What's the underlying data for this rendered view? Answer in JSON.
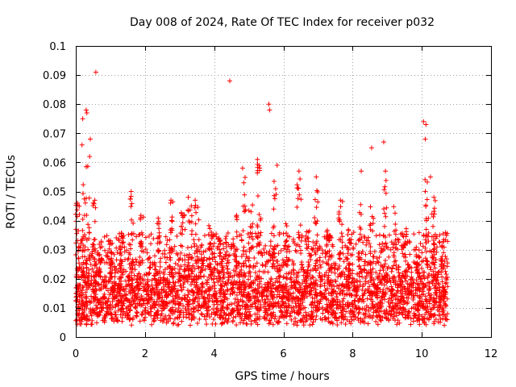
{
  "chart_data": {
    "type": "scatter",
    "title": "Day 008 of 2024, Rate Of TEC Index for receiver p032",
    "xlabel": "GPS time / hours",
    "ylabel": "ROTI / TECUs",
    "xlim": [
      0,
      12
    ],
    "ylim": [
      0,
      0.1
    ],
    "x_ticks": [
      0,
      2,
      4,
      6,
      8,
      10,
      12
    ],
    "x_tick_labels": [
      "0",
      "2",
      "4",
      "6",
      "8",
      "10",
      "12"
    ],
    "y_ticks": [
      0,
      0.01,
      0.02,
      0.03,
      0.04,
      0.05,
      0.06,
      0.07,
      0.08,
      0.09,
      0.1
    ],
    "y_tick_labels": [
      "0",
      "0.01",
      "0.02",
      "0.03",
      "0.04",
      "0.05",
      "0.06",
      "0.07",
      "0.08",
      "0.09",
      "0.1"
    ],
    "grid": true,
    "marker": "+",
    "color": "#ff0000",
    "x_data_range": [
      0,
      10.75
    ],
    "typical_band": [
      0.005,
      0.02
    ],
    "notable_points": [
      {
        "x": 0.58,
        "y": 0.091
      },
      {
        "x": 0.3,
        "y": 0.078
      },
      {
        "x": 0.32,
        "y": 0.077
      },
      {
        "x": 0.2,
        "y": 0.075
      },
      {
        "x": 0.42,
        "y": 0.068
      },
      {
        "x": 0.18,
        "y": 0.066
      },
      {
        "x": 0.4,
        "y": 0.062
      },
      {
        "x": 4.45,
        "y": 0.088
      },
      {
        "x": 5.58,
        "y": 0.08
      },
      {
        "x": 5.6,
        "y": 0.078
      },
      {
        "x": 5.25,
        "y": 0.061
      },
      {
        "x": 8.55,
        "y": 0.065
      },
      {
        "x": 8.9,
        "y": 0.067
      },
      {
        "x": 10.05,
        "y": 0.074
      },
      {
        "x": 10.12,
        "y": 0.073
      },
      {
        "x": 10.1,
        "y": 0.068
      },
      {
        "x": 10.25,
        "y": 0.055
      },
      {
        "x": 4.82,
        "y": 0.058
      },
      {
        "x": 5.82,
        "y": 0.059
      },
      {
        "x": 6.45,
        "y": 0.057
      },
      {
        "x": 6.95,
        "y": 0.055
      },
      {
        "x": 8.25,
        "y": 0.057
      },
      {
        "x": 8.95,
        "y": 0.057
      },
      {
        "x": 1.6,
        "y": 0.05
      },
      {
        "x": 2.75,
        "y": 0.047
      },
      {
        "x": 3.25,
        "y": 0.048
      },
      {
        "x": 3.45,
        "y": 0.047
      },
      {
        "x": 7.65,
        "y": 0.047
      },
      {
        "x": 10.35,
        "y": 0.048
      },
      {
        "x": 0.05,
        "y": 0.046
      },
      {
        "x": 0.55,
        "y": 0.047
      }
    ]
  }
}
